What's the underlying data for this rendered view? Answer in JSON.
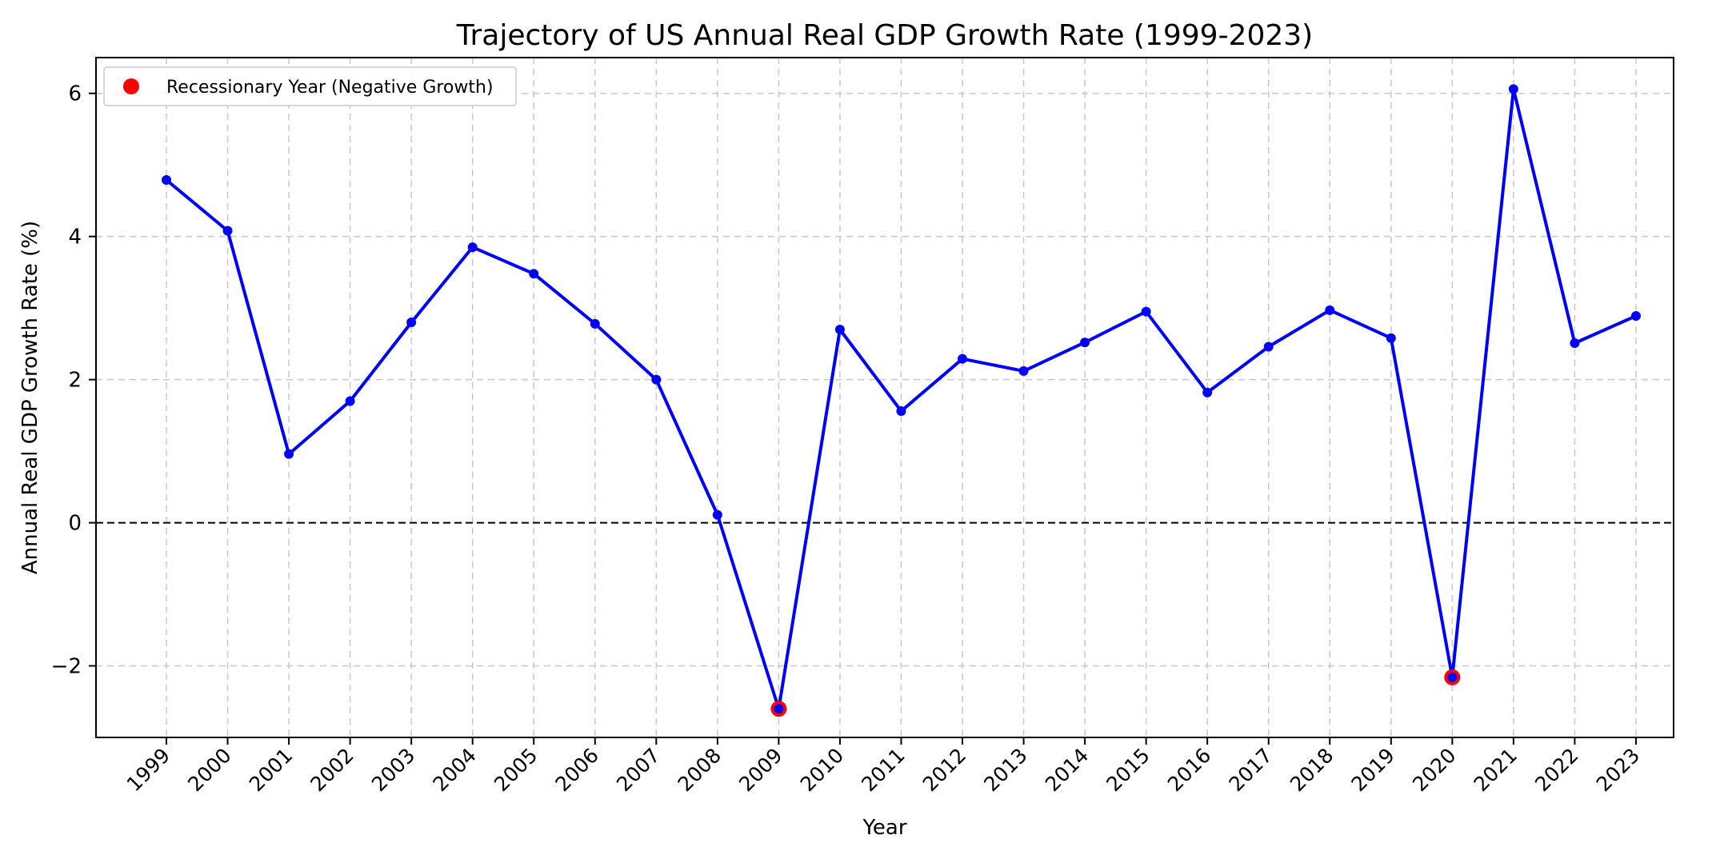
{
  "chart_data": {
    "type": "line",
    "title": "Trajectory of US Annual Real GDP Growth Rate (1999-2023)",
    "xlabel": "Year",
    "ylabel": "Annual Real GDP Growth Rate (%)",
    "ylim": [
      -3.0,
      6.5
    ],
    "yticks": [
      -2,
      0,
      2,
      4,
      6
    ],
    "grid": true,
    "legend_position": "top-left",
    "categories": [
      "1999",
      "2000",
      "2001",
      "2002",
      "2003",
      "2004",
      "2005",
      "2006",
      "2007",
      "2008",
      "2009",
      "2010",
      "2011",
      "2012",
      "2013",
      "2014",
      "2015",
      "2016",
      "2017",
      "2018",
      "2019",
      "2020",
      "2021",
      "2022",
      "2023"
    ],
    "series": [
      {
        "name": "Annual Real GDP Growth Rate",
        "color": "#0000ff",
        "values": [
          4.79,
          4.08,
          0.96,
          1.7,
          2.8,
          3.85,
          3.48,
          2.78,
          2.0,
          0.11,
          -2.6,
          2.7,
          1.56,
          2.29,
          2.12,
          2.52,
          2.95,
          1.82,
          2.46,
          2.97,
          2.58,
          -2.16,
          6.06,
          2.51,
          2.89
        ]
      }
    ],
    "highlights": [
      {
        "year": "2009",
        "value": -2.6
      },
      {
        "year": "2020",
        "value": -2.16
      }
    ],
    "highlight_color": "#ff0000",
    "reference_line": {
      "value": 0,
      "style": "dashed",
      "color": "#000000"
    },
    "legend": [
      {
        "label": "Recessionary Year (Negative Growth)",
        "marker": "circle",
        "color": "#ff0000"
      }
    ]
  }
}
